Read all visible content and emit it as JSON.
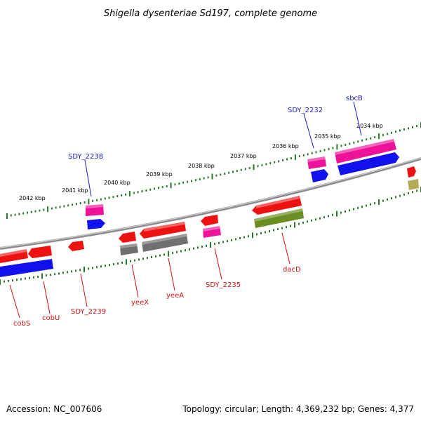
{
  "title": "Shigella dysenteriae Sd197, complete genome",
  "footer": {
    "accession": "Accession: NC_007606",
    "summary": "Topology: circular; Length: 4,369,232 bp; Genes: 4,377"
  },
  "colors": {
    "forward_label": "#1a1acc",
    "reverse_label": "#cc1111",
    "backbone": "#8c8c8c",
    "tick": "#2a7a2a",
    "gene_red": "#ee1111",
    "gene_magenta": "#ee1199",
    "gene_blue": "#1111ee",
    "gene_gray": "#707070",
    "gene_olive": "#6b8e23",
    "gene_khaki": "#b5aa55"
  },
  "scale_labels": [
    "2042 kbp",
    "2041 kbp",
    "2040 kbp",
    "2039 kbp",
    "2038 kbp",
    "2037 kbp",
    "2036 kbp",
    "2035 kbp",
    "2034 kbp"
  ],
  "forward_labels": [
    "SDY_2238",
    "SDY_2232",
    "sbcB"
  ],
  "reverse_labels": [
    "cobS",
    "cobU",
    "SDY_2239",
    "yeeX",
    "yeeA",
    "SDY_2235",
    "dacD"
  ]
}
